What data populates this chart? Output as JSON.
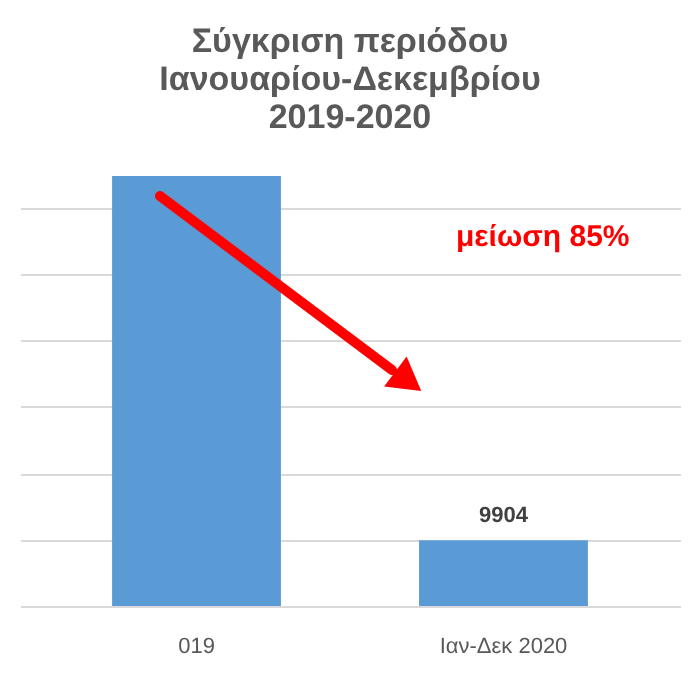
{
  "chart_data": {
    "type": "bar",
    "title": [
      "Σύγκριση περιόδου",
      "Ιανουαρίου-Δεκεμβρίου",
      "2019-2020"
    ],
    "categories": [
      "019",
      "Ιαν-Δεκ 2020"
    ],
    "values": [
      64800,
      9904
    ],
    "value_labels": [
      null,
      "9904"
    ],
    "color": "#5b9bd5",
    "yticks": [
      {
        "value": 0,
        "label": null
      },
      {
        "value": 10000,
        "label": null
      },
      {
        "value": 20000,
        "label": null
      },
      {
        "value": 30000,
        "label": null
      },
      {
        "value": 40000,
        "label": null
      },
      {
        "value": 50000,
        "label": null
      },
      {
        "value": 60000,
        "label": null
      }
    ],
    "grid": "y",
    "tick_labels": "x",
    "annotations": [
      "μείωση 85%"
    ]
  }
}
